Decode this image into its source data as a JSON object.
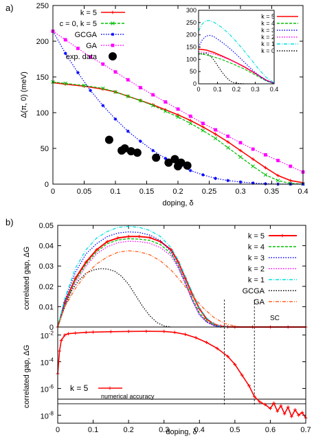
{
  "chart_data": [
    {
      "id": "a",
      "panel_label": "a)",
      "type": "line",
      "xlabel": "doping, δ",
      "ylabel": "Δ(π, 0) (meV)",
      "xlim": [
        0,
        0.4
      ],
      "ylim": [
        0,
        250
      ],
      "xticks": [
        "0",
        "0.05",
        "0.1",
        "0.15",
        "0.2",
        "0.25",
        "0.3",
        "0.35",
        "0.4"
      ],
      "yticks": [
        "0",
        "50",
        "100",
        "150",
        "200",
        "250"
      ],
      "legend_position": "top-left",
      "series": [
        {
          "name": "k = 5",
          "color": "#ff0000",
          "style": "solid",
          "marker": "plus",
          "x": [
            0,
            0.02,
            0.05,
            0.08,
            0.1,
            0.12,
            0.14,
            0.16,
            0.18,
            0.2,
            0.22,
            0.24,
            0.26,
            0.28,
            0.3,
            0.32,
            0.34,
            0.36,
            0.38,
            0.4
          ],
          "y": [
            142,
            140,
            137,
            133,
            129,
            123,
            117,
            111,
            104,
            97,
            89,
            80,
            70,
            59,
            47,
            35,
            23,
            12,
            5,
            2
          ]
        },
        {
          "name": "c = 0, k = 5",
          "color": "#00c000",
          "style": "dashed",
          "marker": "x",
          "x": [
            0,
            0.02,
            0.05,
            0.08,
            0.1,
            0.12,
            0.14,
            0.16,
            0.18,
            0.2,
            0.22,
            0.24,
            0.26,
            0.28,
            0.3,
            0.32,
            0.34,
            0.36,
            0.38,
            0.4
          ],
          "y": [
            143,
            141,
            138,
            134,
            129,
            123,
            117,
            110,
            102,
            94,
            85,
            75,
            64,
            51,
            38,
            25,
            13,
            5,
            1,
            0
          ]
        },
        {
          "name": "GCGA",
          "color": "#0000ff",
          "style": "dotted",
          "marker": "star",
          "x": [
            0,
            0.02,
            0.04,
            0.06,
            0.08,
            0.1,
            0.12,
            0.14,
            0.16,
            0.18,
            0.2,
            0.22,
            0.24,
            0.26,
            0.28,
            0.3,
            0.32,
            0.34,
            0.36,
            0.38,
            0.4
          ],
          "y": [
            214,
            183,
            156,
            131,
            110,
            91,
            74,
            60,
            47,
            36,
            27,
            19,
            13,
            8,
            5,
            3,
            1.5,
            0.5,
            0,
            0,
            0
          ]
        },
        {
          "name": "GA",
          "color": "#ff00ff",
          "style": "dotted",
          "marker": "square",
          "x": [
            0,
            0.02,
            0.04,
            0.06,
            0.08,
            0.1,
            0.12,
            0.14,
            0.16,
            0.18,
            0.2,
            0.22,
            0.24,
            0.26,
            0.28,
            0.3,
            0.32,
            0.34,
            0.36,
            0.38,
            0.4
          ],
          "y": [
            214,
            202,
            190,
            178,
            168,
            157,
            146,
            135,
            125,
            115,
            105,
            95,
            85,
            76,
            67,
            58,
            49,
            41,
            33,
            25,
            17
          ]
        },
        {
          "name": "exp. data",
          "color": "#000000",
          "style": "none",
          "marker": "circle",
          "x": [
            0.09,
            0.11,
            0.115,
            0.125,
            0.135,
            0.165,
            0.185,
            0.195,
            0.2,
            0.205,
            0.215
          ],
          "y": [
            62,
            47,
            50,
            46,
            44,
            37,
            30,
            35,
            25,
            30,
            26
          ]
        }
      ],
      "inset": {
        "xlim": [
          0,
          0.4
        ],
        "ylim": [
          0,
          300
        ],
        "xticks": [
          "0",
          "0.1",
          "0.2",
          "0.3",
          "0.4"
        ],
        "yticks": [
          "0",
          "50",
          "100",
          "150",
          "200",
          "250",
          "300"
        ],
        "series": [
          {
            "name": "k = 5",
            "color": "#ff0000",
            "style": "solid",
            "x": [
              0,
              0.04,
              0.08,
              0.12,
              0.16,
              0.2,
              0.24,
              0.28,
              0.32,
              0.36,
              0.4
            ],
            "y": [
              142,
              138,
              128,
              115,
              101,
              86,
              70,
              52,
              33,
              14,
              2
            ]
          },
          {
            "name": "k = 4",
            "color": "#00c000",
            "style": "dashed",
            "x": [
              0,
              0.04,
              0.08,
              0.12,
              0.16,
              0.2,
              0.24,
              0.28,
              0.32,
              0.36,
              0.4
            ],
            "y": [
              125,
              118,
              110,
              100,
              88,
              75,
              61,
              45,
              28,
              11,
              1
            ]
          },
          {
            "name": "k = 3",
            "color": "#0000ff",
            "style": "dotted",
            "x": [
              0,
              0.02,
              0.04,
              0.06,
              0.08,
              0.12,
              0.16,
              0.2,
              0.24,
              0.28,
              0.32,
              0.36,
              0.4
            ],
            "y": [
              150,
              180,
              195,
              198,
              193,
              172,
              148,
              120,
              90,
              60,
              33,
              12,
              2
            ]
          },
          {
            "name": "k = 2",
            "color": "#ff00ff",
            "style": "dotted",
            "x": [
              0,
              0.04,
              0.08,
              0.12,
              0.16,
              0.2,
              0.24,
              0.28,
              0.32,
              0.36,
              0.4
            ],
            "y": [
              130,
              128,
              122,
              112,
              100,
              86,
              70,
              52,
              33,
              14,
              2
            ]
          },
          {
            "name": "k = 1",
            "color": "#00e0e0",
            "style": "dashdot",
            "x": [
              0,
              0.02,
              0.04,
              0.06,
              0.08,
              0.12,
              0.16,
              0.2,
              0.24,
              0.28,
              0.32,
              0.36,
              0.4
            ],
            "y": [
              215,
              245,
              258,
              258,
              252,
              232,
              205,
              172,
              136,
              97,
              58,
              25,
              4
            ]
          },
          {
            "name": "k = 0",
            "color": "#000000",
            "style": "dotted",
            "x": [
              0,
              0.04,
              0.06,
              0.08,
              0.1,
              0.12,
              0.14,
              0.16,
              0.18,
              0.2,
              0.24
            ],
            "y": [
              120,
              125,
              115,
              98,
              75,
              52,
              32,
              16,
              6,
              2,
              0
            ]
          }
        ]
      }
    },
    {
      "id": "b-top",
      "panel_label": "b)",
      "type": "line",
      "xlabel": "",
      "ylabel": "correlated gap, ΔG",
      "xlim": [
        0,
        0.7
      ],
      "ylim": [
        0,
        0.05
      ],
      "yticks": [
        "0",
        "0.01",
        "0.02",
        "0.03",
        "0.04",
        "0.05"
      ],
      "annotation": "SC",
      "vlines": [
        0.47,
        0.555
      ],
      "legend_position": "top-right",
      "series": [
        {
          "name": "k = 5",
          "color": "#ff0000",
          "style": "solid",
          "marker": "plus",
          "x": [
            0,
            0.02,
            0.05,
            0.08,
            0.11,
            0.14,
            0.17,
            0.2,
            0.23,
            0.26,
            0.29,
            0.32,
            0.34,
            0.36,
            0.38,
            0.4,
            0.42,
            0.44,
            0.46,
            0.48,
            0.5,
            0.55,
            0.6,
            0.65,
            0.7
          ],
          "y": [
            0,
            0.012,
            0.024,
            0.032,
            0.038,
            0.042,
            0.0438,
            0.0445,
            0.0445,
            0.044,
            0.042,
            0.038,
            0.032,
            0.024,
            0.016,
            0.009,
            0.004,
            0.0015,
            0.0004,
            0.0001,
            0,
            0,
            0,
            0,
            0
          ]
        },
        {
          "name": "k = 4",
          "color": "#00c000",
          "style": "dashed",
          "x": [
            0,
            0.02,
            0.05,
            0.08,
            0.11,
            0.14,
            0.17,
            0.2,
            0.23,
            0.26,
            0.29,
            0.32,
            0.34,
            0.36,
            0.38,
            0.4,
            0.42,
            0.44,
            0.46
          ],
          "y": [
            0,
            0.011,
            0.023,
            0.031,
            0.037,
            0.041,
            0.0428,
            0.0434,
            0.0432,
            0.0426,
            0.0405,
            0.036,
            0.03,
            0.022,
            0.014,
            0.007,
            0.003,
            0.001,
            0
          ]
        },
        {
          "name": "k = 3",
          "color": "#0000ff",
          "style": "dotted",
          "x": [
            0,
            0.02,
            0.05,
            0.08,
            0.11,
            0.14,
            0.17,
            0.2,
            0.23,
            0.26,
            0.29,
            0.32,
            0.34,
            0.36,
            0.38,
            0.4,
            0.42,
            0.44,
            0.46
          ],
          "y": [
            0,
            0.013,
            0.027,
            0.036,
            0.041,
            0.0445,
            0.0462,
            0.0468,
            0.0465,
            0.0452,
            0.0425,
            0.037,
            0.03,
            0.022,
            0.013,
            0.006,
            0.0025,
            0.0007,
            0
          ]
        },
        {
          "name": "k = 2",
          "color": "#ff00ff",
          "style": "dotted",
          "x": [
            0,
            0.02,
            0.05,
            0.08,
            0.11,
            0.14,
            0.17,
            0.2,
            0.23,
            0.26,
            0.29,
            0.32,
            0.34,
            0.36,
            0.38,
            0.4,
            0.42,
            0.44,
            0.46
          ],
          "y": [
            0,
            0.011,
            0.022,
            0.03,
            0.036,
            0.0395,
            0.0415,
            0.0422,
            0.042,
            0.0412,
            0.039,
            0.035,
            0.029,
            0.021,
            0.013,
            0.006,
            0.0025,
            0.0007,
            0
          ]
        },
        {
          "name": "k = 1",
          "color": "#00e0e0",
          "style": "dashdot",
          "x": [
            0,
            0.02,
            0.05,
            0.08,
            0.11,
            0.14,
            0.17,
            0.2,
            0.23,
            0.26,
            0.29,
            0.32,
            0.34,
            0.36,
            0.38,
            0.4,
            0.42,
            0.44,
            0.46,
            0.48
          ],
          "y": [
            0,
            0.014,
            0.029,
            0.038,
            0.0438,
            0.047,
            0.049,
            0.0495,
            0.049,
            0.0475,
            0.0445,
            0.039,
            0.033,
            0.025,
            0.017,
            0.0095,
            0.0045,
            0.0015,
            0.0003,
            0
          ]
        },
        {
          "name": "GCGA",
          "color": "#000000",
          "style": "dotted",
          "x": [
            0,
            0.02,
            0.04,
            0.06,
            0.08,
            0.1,
            0.12,
            0.14,
            0.16,
            0.18,
            0.2,
            0.22,
            0.24,
            0.26,
            0.28,
            0.3,
            0.32
          ],
          "y": [
            0,
            0.01,
            0.018,
            0.023,
            0.0265,
            0.028,
            0.0287,
            0.0285,
            0.0275,
            0.025,
            0.021,
            0.0155,
            0.01,
            0.0055,
            0.0022,
            0.0005,
            0
          ]
        },
        {
          "name": "GA",
          "color": "#ff6020",
          "style": "dashdot",
          "x": [
            0,
            0.02,
            0.05,
            0.08,
            0.11,
            0.14,
            0.17,
            0.2,
            0.23,
            0.26,
            0.29,
            0.32,
            0.35,
            0.38,
            0.41,
            0.44,
            0.47,
            0.5,
            0.52
          ],
          "y": [
            0,
            0.01,
            0.019,
            0.026,
            0.031,
            0.0345,
            0.0368,
            0.0375,
            0.037,
            0.0355,
            0.0325,
            0.028,
            0.022,
            0.0155,
            0.0095,
            0.0048,
            0.0018,
            0.0004,
            0
          ]
        }
      ]
    },
    {
      "id": "b-bottom",
      "type": "line",
      "xlabel": "doping, δ",
      "ylabel": "correlated gap, ΔG",
      "xlim": [
        0,
        0.7
      ],
      "log_y": true,
      "ylim_exponent": [
        -8.6,
        -1.4
      ],
      "xticks": [
        "0",
        "0.1",
        "0.2",
        "0.3",
        "0.4",
        "0.5",
        "0.6",
        "0.7"
      ],
      "yticks": [
        {
          "base": "10",
          "exp": "-2",
          "value": -2
        },
        {
          "base": "10",
          "exp": "-4",
          "value": -4
        },
        {
          "base": "10",
          "exp": "-6",
          "value": -6
        },
        {
          "base": "10",
          "exp": "-8",
          "value": -8
        }
      ],
      "annotation": "numerical accuracy",
      "accuracy_lines": [
        -6.8,
        -7.15
      ],
      "vlines": [
        0.47,
        0.555
      ],
      "legend_position": "bottom-left",
      "series": [
        {
          "name": "k = 5",
          "color": "#ff0000",
          "style": "solid",
          "marker": "plus",
          "x": [
            0,
            0.005,
            0.01,
            0.02,
            0.03,
            0.05,
            0.08,
            0.1,
            0.15,
            0.2,
            0.25,
            0.3,
            0.33,
            0.36,
            0.39,
            0.42,
            0.45,
            0.48,
            0.5,
            0.52,
            0.54,
            0.555,
            0.57,
            0.585,
            0.6,
            0.61,
            0.62,
            0.63,
            0.64,
            0.65,
            0.66,
            0.67,
            0.68,
            0.69,
            0.7
          ],
          "y_exponent": [
            -4.9,
            -3.2,
            -2.4,
            -2.0,
            -1.9,
            -1.85,
            -1.8,
            -1.78,
            -1.75,
            -1.73,
            -1.72,
            -1.73,
            -1.8,
            -1.95,
            -2.2,
            -2.55,
            -3.0,
            -3.6,
            -4.2,
            -5.0,
            -5.8,
            -6.6,
            -7.0,
            -7.2,
            -7.5,
            -7.1,
            -7.7,
            -7.3,
            -7.9,
            -7.4,
            -8.1,
            -7.6,
            -8.0,
            -7.8,
            -8.2
          ]
        }
      ]
    }
  ]
}
